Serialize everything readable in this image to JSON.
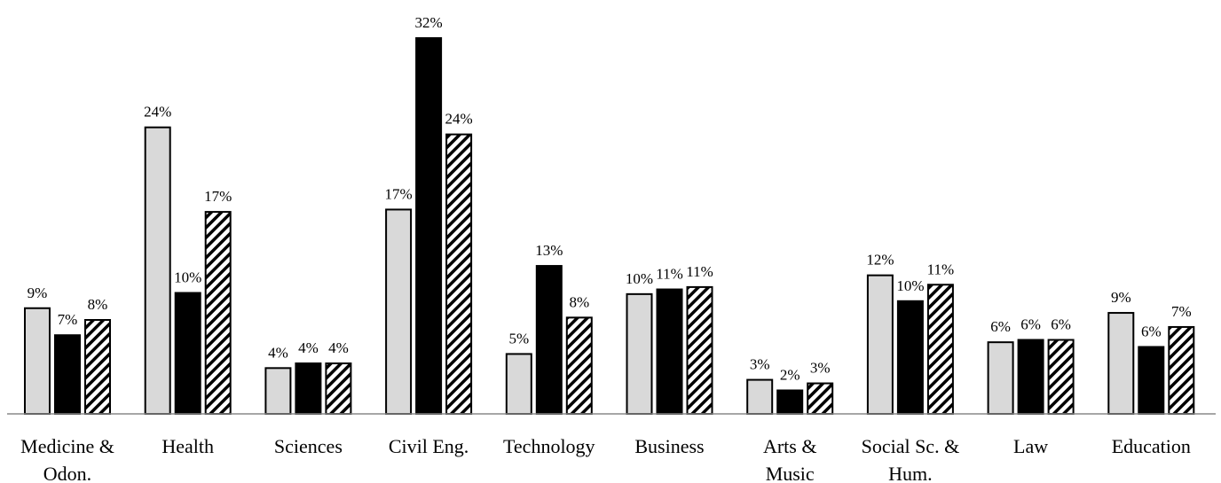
{
  "chart_data": {
    "type": "bar",
    "categories": [
      "Medicine &\nOdon.",
      "Health",
      "Sciences",
      "Civil Eng.",
      "Technology",
      "Business",
      "Arts &\nMusic",
      "Social Sc. &\nHum.",
      "Law",
      "Education"
    ],
    "series": [
      {
        "color": "#d9d9d9",
        "values": [
          9.0,
          24.4,
          3.9,
          17.4,
          5.1,
          10.2,
          2.9,
          11.8,
          6.1,
          8.6
        ],
        "value_labels": [
          "9%",
          "24%",
          "4%",
          "17%",
          "5%",
          "10%",
          "3%",
          "12%",
          "6%",
          "9%"
        ]
      },
      {
        "color": "#000000",
        "values": [
          6.7,
          10.3,
          4.3,
          32.0,
          12.6,
          10.6,
          2.0,
          9.6,
          6.3,
          5.7
        ],
        "value_labels": [
          "7%",
          "10%",
          "4%",
          "32%",
          "13%",
          "11%",
          "2%",
          "10%",
          "6%",
          "6%"
        ]
      },
      {
        "color": "#ffffff",
        "hatch": true,
        "values": [
          8.0,
          17.2,
          4.3,
          23.8,
          8.2,
          10.8,
          2.6,
          11.0,
          6.3,
          7.4
        ],
        "value_labels": [
          "8%",
          "17%",
          "4%",
          "24%",
          "8%",
          "11%",
          "3%",
          "11%",
          "6%",
          "7%"
        ]
      }
    ],
    "ylim": [
      0,
      32
    ]
  }
}
